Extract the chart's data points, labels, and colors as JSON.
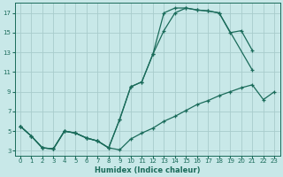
{
  "xlabel": "Humidex (Indice chaleur)",
  "bg_color": "#c8e8e8",
  "grid_color": "#a8cccc",
  "line_color": "#1a6b5a",
  "xlim": [
    -0.5,
    23.5
  ],
  "ylim": [
    2.5,
    18.0
  ],
  "xticks": [
    0,
    1,
    2,
    3,
    4,
    5,
    6,
    7,
    8,
    9,
    10,
    11,
    12,
    13,
    14,
    15,
    16,
    17,
    18,
    19,
    20,
    21,
    22,
    23
  ],
  "yticks": [
    3,
    5,
    7,
    9,
    11,
    13,
    15,
    17
  ],
  "line1_x": [
    0,
    1,
    2,
    3,
    4,
    5,
    6,
    7,
    8,
    9,
    10,
    11,
    12,
    13,
    14,
    15,
    16,
    17,
    18,
    21
  ],
  "line1_y": [
    5.5,
    4.5,
    3.3,
    3.2,
    5.0,
    4.8,
    4.3,
    4.0,
    3.3,
    6.2,
    9.5,
    10.0,
    12.8,
    15.2,
    17.0,
    17.5,
    17.3,
    17.2,
    17.0,
    11.2
  ],
  "line2_x": [
    0,
    1,
    2,
    3,
    4,
    5,
    6,
    7,
    8,
    9,
    10,
    11,
    12,
    13,
    14,
    15,
    16,
    17,
    18,
    19,
    20,
    21,
    22,
    23
  ],
  "line2_y": [
    5.5,
    4.5,
    3.3,
    3.2,
    5.0,
    4.8,
    4.3,
    4.0,
    3.3,
    3.1,
    4.2,
    4.8,
    5.3,
    6.0,
    6.5,
    7.1,
    7.7,
    8.1,
    8.6,
    9.0,
    9.4,
    9.7,
    8.2,
    9.0
  ],
  "line3_x": [
    0,
    1,
    2,
    3,
    4,
    5,
    6,
    7,
    8,
    9,
    10,
    11,
    12,
    13,
    14,
    15,
    16,
    17,
    18,
    19,
    20,
    21
  ],
  "line3_y": [
    5.5,
    4.5,
    3.3,
    3.2,
    5.0,
    4.8,
    4.3,
    4.0,
    3.3,
    6.2,
    9.5,
    10.0,
    12.8,
    17.0,
    17.5,
    17.5,
    17.3,
    17.2,
    17.0,
    15.0,
    15.2,
    13.2
  ]
}
